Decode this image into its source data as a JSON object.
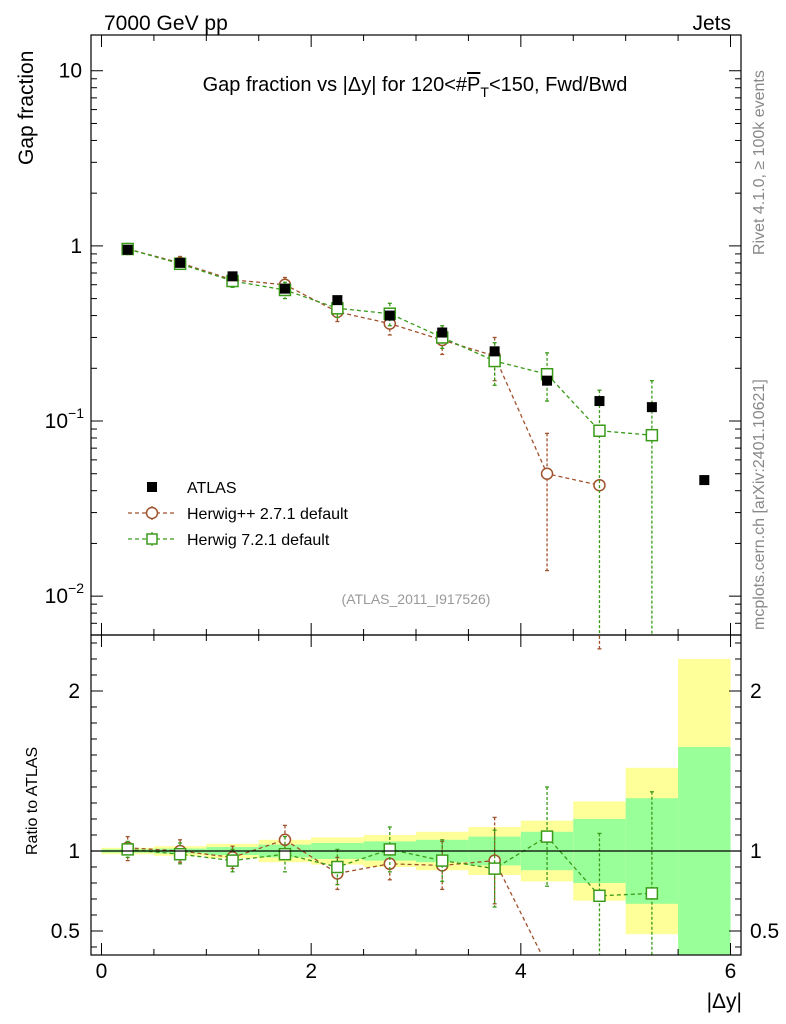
{
  "header": {
    "left": "7000 GeV pp",
    "right": "Jets"
  },
  "side_labels": {
    "top": "Rivet 4.1.0, ≥ 100k events",
    "bottom": "mcplots.cern.ch [arXiv:2401.10621]"
  },
  "colors": {
    "atlas": "#000000",
    "herwig_pp": "#a0522d",
    "herwig7": "#3a9a1a",
    "band_outer": "#ffff99",
    "band_inner": "#99ff99"
  },
  "chart_data": [
    {
      "type": "scatter",
      "title": "Gap fraction vs |Δy| for 120<#P̅T<150, Fwd/Bwd",
      "title_parts": {
        "pre": "Gap fraction vs |Δy| for 120<#",
        "p": "P",
        "t": "T",
        "post": "<150, Fwd/Bwd"
      },
      "ylabel": "Gap fraction",
      "xlabel": "|Δy|",
      "yscale": "log",
      "ylim": [
        0.006,
        16
      ],
      "xlim": [
        -0.1,
        6.1
      ],
      "y_ticks": [
        {
          "value": 10,
          "base": "10",
          "exp": ""
        },
        {
          "value": 1,
          "base": "1",
          "exp": ""
        },
        {
          "value": 0.1,
          "base": "10",
          "exp": "−1"
        },
        {
          "value": 0.01,
          "base": "10",
          "exp": "−2"
        }
      ],
      "watermark": "(ATLAS_2011_I917526)",
      "legend": [
        "ATLAS",
        "Herwig++ 2.7.1 default",
        "Herwig 7.2.1 default"
      ],
      "series": [
        {
          "name": "ATLAS",
          "x": [
            0.25,
            0.75,
            1.25,
            1.75,
            2.25,
            2.75,
            3.25,
            3.75,
            4.25,
            4.75,
            5.25,
            5.75
          ],
          "y": [
            0.95,
            0.8,
            0.67,
            0.57,
            0.49,
            0.4,
            0.32,
            0.25,
            0.17,
            0.13,
            0.12,
            0.046
          ]
        },
        {
          "name": "Herwig++ 2.7.1 default",
          "x": [
            0.25,
            0.75,
            1.25,
            1.75,
            2.25,
            2.75,
            3.25,
            3.75,
            4.25,
            4.75
          ],
          "y": [
            0.96,
            0.8,
            0.64,
            0.6,
            0.42,
            0.36,
            0.29,
            0.235,
            0.05,
            0.043
          ],
          "err_lo": [
            0.9,
            0.74,
            0.59,
            0.54,
            0.37,
            0.31,
            0.24,
            0.17,
            0.014,
            0.005
          ],
          "err_hi": [
            1.02,
            0.87,
            0.7,
            0.66,
            0.47,
            0.41,
            0.34,
            0.3,
            0.085,
            0.005
          ]
        },
        {
          "name": "Herwig 7.2.1 default",
          "x": [
            0.25,
            0.75,
            1.25,
            1.75,
            2.25,
            2.75,
            3.25,
            3.75,
            4.25,
            4.75,
            5.25
          ],
          "y": [
            0.96,
            0.79,
            0.63,
            0.56,
            0.44,
            0.41,
            0.3,
            0.22,
            0.185,
            0.088,
            0.083
          ],
          "err_lo": [
            0.91,
            0.74,
            0.58,
            0.5,
            0.39,
            0.35,
            0.26,
            0.16,
            0.13,
            0.005,
            0.005
          ],
          "err_hi": [
            1.01,
            0.85,
            0.69,
            0.62,
            0.5,
            0.47,
            0.35,
            0.28,
            0.245,
            0.15,
            0.17
          ]
        }
      ]
    },
    {
      "type": "scatter",
      "title": "",
      "ylabel": "Ratio to ATLAS",
      "xlabel": "|Δy|",
      "ylim": [
        0.35,
        2.35
      ],
      "xlim": [
        -0.1,
        6.1
      ],
      "x_ticks": [
        0,
        2,
        4,
        6
      ],
      "y_ticks": [
        2,
        1,
        0.5
      ],
      "y_tick_labels": [
        "2",
        "1",
        "0.5"
      ],
      "bands": {
        "edges": [
          0,
          0.5,
          1,
          1.5,
          2,
          2.5,
          3,
          3.5,
          4,
          4.5,
          5,
          5.5,
          6
        ],
        "outer_lo": [
          0.98,
          0.97,
          0.955,
          0.93,
          0.915,
          0.9,
          0.88,
          0.85,
          0.81,
          0.69,
          0.48,
          0.35
        ],
        "outer_hi": [
          1.02,
          1.03,
          1.045,
          1.07,
          1.085,
          1.1,
          1.12,
          1.15,
          1.19,
          1.31,
          1.52,
          2.2
        ],
        "inner_lo": [
          0.99,
          0.985,
          0.975,
          0.96,
          0.95,
          0.94,
          0.93,
          0.91,
          0.88,
          0.8,
          0.67,
          0.35
        ],
        "inner_hi": [
          1.01,
          1.015,
          1.025,
          1.04,
          1.05,
          1.06,
          1.07,
          1.09,
          1.12,
          1.2,
          1.33,
          1.65
        ]
      },
      "series": [
        {
          "name": "Herwig++ 2.7.1 default",
          "x": [
            0.25,
            0.75,
            1.25,
            1.75,
            2.25,
            2.75,
            3.25,
            3.75
          ],
          "y": [
            1.02,
            1.0,
            0.96,
            1.07,
            0.86,
            0.92,
            0.91,
            0.94
          ],
          "err_lo": [
            0.94,
            0.93,
            0.89,
            0.97,
            0.76,
            0.82,
            0.76,
            0.67
          ],
          "err_hi": [
            1.09,
            1.07,
            1.03,
            1.16,
            0.96,
            1.02,
            1.06,
            1.21
          ],
          "tail": [
            [
              3.75,
              0.94
            ],
            [
              4.2,
              0.35
            ]
          ]
        },
        {
          "name": "Herwig 7.2.1 default",
          "x": [
            0.25,
            0.75,
            1.25,
            1.75,
            2.25,
            2.75,
            3.25,
            3.75,
            4.25,
            4.75,
            5.25
          ],
          "y": [
            1.01,
            0.98,
            0.94,
            0.98,
            0.9,
            1.01,
            0.94,
            0.89,
            1.09,
            0.72,
            0.735
          ],
          "err_lo": [
            0.96,
            0.92,
            0.87,
            0.87,
            0.79,
            0.87,
            0.81,
            0.65,
            0.78,
            0.35,
            0.35
          ],
          "err_hi": [
            1.06,
            1.05,
            1.01,
            1.09,
            1.01,
            1.15,
            1.07,
            1.13,
            1.4,
            1.11,
            1.37
          ]
        }
      ]
    }
  ]
}
